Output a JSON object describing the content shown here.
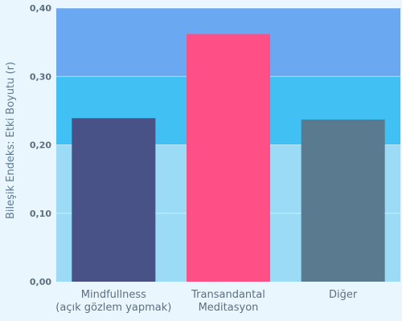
{
  "chart_data": {
    "type": "bar",
    "ylabel": "Bileşik Endeks: Etki Boyutu (r)",
    "xlabel": "",
    "ylim": [
      0,
      0.4
    ],
    "yticks": [
      {
        "value": 0.0,
        "label": "0,00"
      },
      {
        "value": 0.1,
        "label": "0,10"
      },
      {
        "value": 0.2,
        "label": "0,20"
      },
      {
        "value": 0.3,
        "label": "0,30"
      },
      {
        "value": 0.4,
        "label": "0,40"
      }
    ],
    "categories": [
      [
        "Mindfullness",
        "(açık gözlem yapmak)"
      ],
      [
        "Transandantal",
        "Meditasyon"
      ],
      [
        "Diğer"
      ]
    ],
    "values": [
      0.239,
      0.362,
      0.237
    ],
    "bar_colors": [
      "#485286",
      "#ff4f87",
      "#5a7a90"
    ],
    "bands": [
      {
        "from": 0.0,
        "to": 0.1,
        "color": "#9bdbf5"
      },
      {
        "from": 0.1,
        "to": 0.2,
        "color": "#9bdbf5"
      },
      {
        "from": 0.2,
        "to": 0.3,
        "color": "#40c0f3"
      },
      {
        "from": 0.3,
        "to": 0.4,
        "color": "#6aa8f2"
      }
    ],
    "grid": true
  }
}
